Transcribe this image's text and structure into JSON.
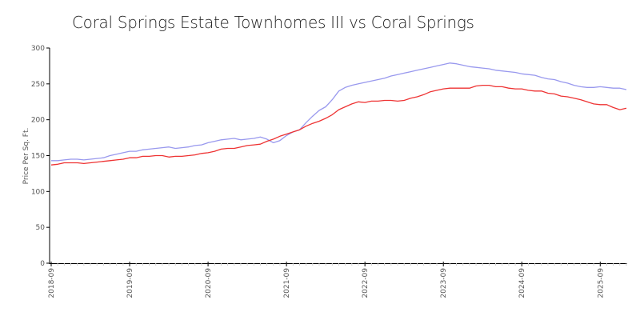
{
  "chart_data": {
    "type": "line",
    "title": "Coral Springs Estate Townhomes III vs Coral Springs",
    "xlabel": "",
    "ylabel": "Price Per Sq. Ft.",
    "ylim": [
      0,
      300
    ],
    "yticks": [
      0,
      50,
      100,
      150,
      200,
      250,
      300
    ],
    "xticks": [
      "2018-09",
      "2019-09",
      "2020-09",
      "2021-09",
      "2022-09",
      "2023-09",
      "2024-09",
      "2025-09"
    ],
    "grid": false,
    "legend": "none",
    "x_start": "2018-09",
    "x_end": "2025-11",
    "series": [
      {
        "name": "Coral Springs",
        "color": "#9999ee",
        "values": [
          143,
          143,
          144,
          145,
          145,
          144,
          145,
          146,
          147,
          150,
          152,
          154,
          156,
          156,
          158,
          159,
          160,
          161,
          162,
          160,
          161,
          162,
          164,
          165,
          168,
          170,
          172,
          173,
          174,
          172,
          173,
          174,
          176,
          173,
          168,
          171,
          178,
          183,
          186,
          196,
          205,
          213,
          218,
          228,
          240,
          245,
          248,
          250,
          252,
          254,
          256,
          258,
          261,
          263,
          265,
          267,
          269,
          271,
          273,
          275,
          277,
          279,
          278,
          276,
          274,
          273,
          272,
          271,
          269,
          268,
          267,
          266,
          264,
          263,
          262,
          259,
          257,
          256,
          253,
          251,
          248,
          246,
          245,
          245,
          246,
          245,
          244,
          244,
          242
        ]
      },
      {
        "name": "Coral Springs Estate Townhomes III",
        "color": "#ee3333",
        "values": [
          137,
          138,
          140,
          140,
          140,
          139,
          140,
          141,
          142,
          143,
          144,
          145,
          147,
          147,
          149,
          149,
          150,
          150,
          148,
          149,
          149,
          150,
          151,
          153,
          154,
          156,
          159,
          160,
          160,
          162,
          164,
          165,
          166,
          170,
          173,
          177,
          180,
          183,
          186,
          191,
          195,
          198,
          202,
          207,
          214,
          218,
          222,
          225,
          224,
          226,
          226,
          227,
          227,
          226,
          227,
          230,
          232,
          235,
          239,
          241,
          243,
          244,
          244,
          244,
          244,
          247,
          248,
          248,
          246,
          246,
          244,
          243,
          243,
          241,
          240,
          240,
          237,
          236,
          233,
          232,
          230,
          228,
          225,
          222,
          221,
          221,
          217,
          214,
          216
        ]
      }
    ]
  }
}
